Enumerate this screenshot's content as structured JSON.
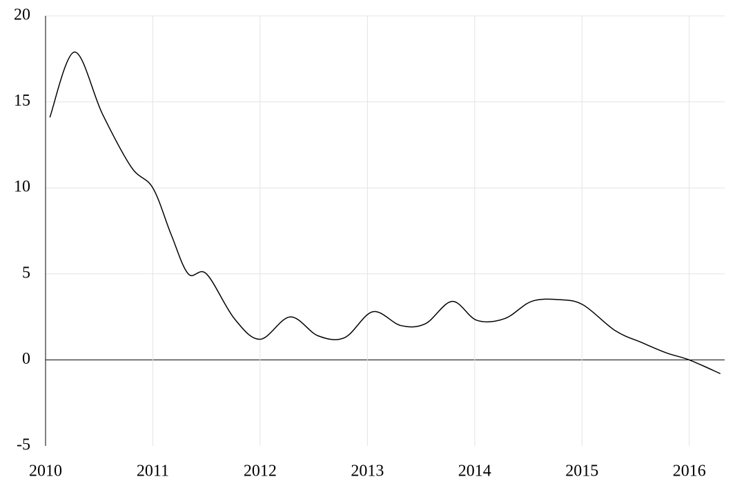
{
  "chart_data": {
    "type": "line",
    "x": [
      2010.04,
      2010.27,
      2010.53,
      2010.8,
      2011.0,
      2011.17,
      2011.33,
      2011.5,
      2011.76,
      2012.0,
      2012.28,
      2012.54,
      2012.79,
      2013.05,
      2013.31,
      2013.54,
      2013.79,
      2014.02,
      2014.28,
      2014.53,
      2014.79,
      2015.01,
      2015.31,
      2015.56,
      2015.79,
      2016.0,
      2016.29
    ],
    "series": [
      {
        "color": "#000000",
        "values": [
          14.1,
          17.9,
          14.3,
          11.2,
          10.0,
          7.3,
          5.0,
          5.0,
          2.4,
          1.2,
          2.5,
          1.4,
          1.3,
          2.8,
          2.0,
          2.1,
          3.4,
          2.3,
          2.4,
          3.4,
          3.5,
          3.2,
          1.7,
          1.0,
          0.4,
          0.0,
          -0.8
        ]
      }
    ],
    "xlim": [
      2010,
      2016.33
    ],
    "xticks": [
      2010,
      2011,
      2012,
      2013,
      2014,
      2015,
      2016
    ],
    "ylim": [
      -5,
      20
    ],
    "yticks": [
      -5,
      0,
      5,
      10,
      15,
      20
    ],
    "grid": true
  }
}
